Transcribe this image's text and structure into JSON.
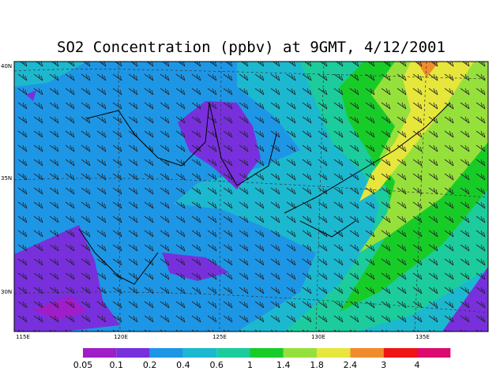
{
  "title": "SO2 Concentration (ppbv) at 9GMT, 4/12/2001",
  "lon_labels": [
    "115E",
    "120E",
    "125E",
    "130E",
    "135E"
  ],
  "lat_labels": [
    "40N",
    "35N",
    "30N"
  ],
  "colorbar": {
    "levels": [
      0.05,
      0.1,
      0.2,
      0.4,
      0.6,
      1,
      1.4,
      1.8,
      2.4,
      3,
      4
    ],
    "colors": [
      "#a01ec8",
      "#7830dc",
      "#1e96e6",
      "#1cb8d0",
      "#1ccc9c",
      "#18cc28",
      "#96e03c",
      "#e6e63c",
      "#f08c2c",
      "#f01414",
      "#dc0a6e"
    ]
  }
}
